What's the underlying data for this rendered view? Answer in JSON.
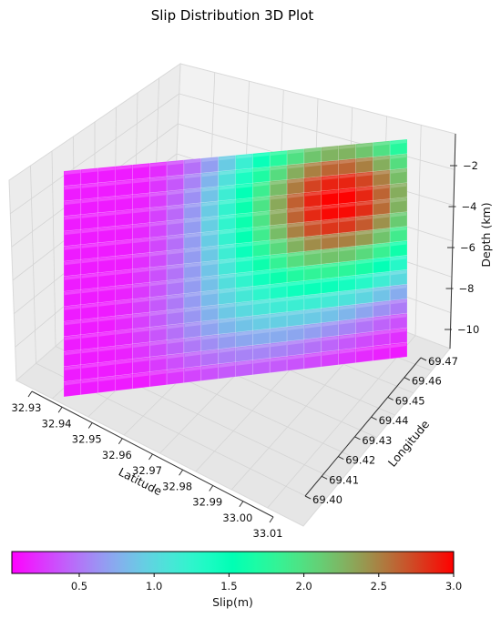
{
  "chart_data": {
    "type": "3d-bar-surface",
    "title": "Slip Distribution 3D Plot",
    "xlabel": "Latitude",
    "ylabel": "Longitude",
    "zlabel": "Depth (km)",
    "x_ticks": [
      "32.93",
      "32.94",
      "32.95",
      "32.96",
      "32.97",
      "32.98",
      "32.99",
      "33.00",
      "33.01"
    ],
    "y_ticks": [
      "69.40",
      "69.41",
      "69.42",
      "69.43",
      "69.44",
      "69.45",
      "69.46",
      "69.47"
    ],
    "z_ticks": [
      "−2",
      "−4",
      "−6",
      "−8",
      "−10"
    ],
    "colorbar": {
      "label": "Slip(m)",
      "min": 0.05,
      "max": 3.0,
      "ticks": [
        "0.5",
        "1.0",
        "1.5",
        "2.0",
        "2.5",
        "3.0"
      ],
      "tick_values": [
        0.5,
        1.0,
        1.5,
        2.0,
        2.5,
        3.0
      ],
      "colormap": "rainbow"
    },
    "grid": true,
    "slip_model": {
      "along_strike_cells": 20,
      "down_dip_cells": 15,
      "peak_slip": 3.0,
      "peak_strike_fraction": 0.8,
      "peak_depth_km": -4,
      "depth_range_km": [
        -2,
        -10
      ],
      "background_slip": 0.15
    }
  }
}
